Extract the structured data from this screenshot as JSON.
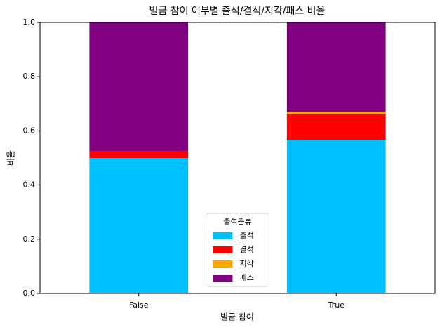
{
  "chart_data": {
    "type": "stacked_bar",
    "title": "벌금 참여 여부별 출석/결석/지각/패스 비율",
    "x_label": "벌금 참여",
    "y_label": "비율",
    "categories": [
      "False",
      "True"
    ],
    "series": [
      {
        "name": "출석",
        "color": "#00bfff",
        "values": [
          0.5,
          0.565
        ]
      },
      {
        "name": "결석",
        "color": "#ff0000",
        "values": [
          0.026,
          0.096
        ]
      },
      {
        "name": "지각",
        "color": "#ffa500",
        "values": [
          0,
          0.01
        ]
      },
      {
        "name": "패스",
        "color": "#800080",
        "values": [
          0.474,
          0.329
        ]
      }
    ],
    "legend_title": "출석분류",
    "legend": "lower center",
    "ylim": [
      0,
      1
    ],
    "yticks": [
      {
        "value": 0,
        "label": "0.0"
      },
      0.2,
      0.4,
      0.6,
      0.8,
      {
        "value": 1,
        "label": "1.0"
      }
    ]
  }
}
